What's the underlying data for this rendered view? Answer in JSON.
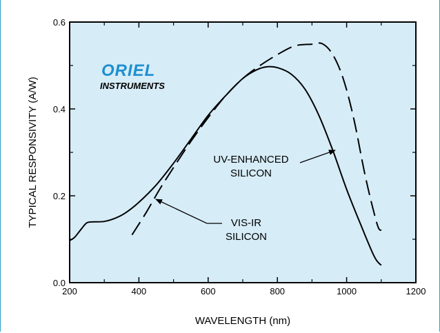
{
  "chart_data": {
    "type": "line",
    "xlabel": "WAVELENGTH (nm)",
    "ylabel": "TYPICAL RESPONSIVITY (A/W)",
    "xlim": [
      200,
      1200
    ],
    "ylim": [
      0.0,
      0.6
    ],
    "x_ticks": [
      "200",
      "400",
      "600",
      "800",
      "1000",
      "1200"
    ],
    "y_ticks": [
      "0.0",
      "0.2",
      "0.4",
      "0.6"
    ],
    "grid": false,
    "background": "#d6ecf7",
    "logo": {
      "brand": "ORIEL",
      "sub": "INSTRUMENTS",
      "color": "#1e8fd0"
    },
    "series": [
      {
        "label_lines": [
          "UV-ENHANCED",
          "SILICON"
        ],
        "style": "solid",
        "x": [
          200,
          215,
          235,
          250,
          270,
          300,
          330,
          360,
          400,
          450,
          500,
          550,
          600,
          650,
          700,
          740,
          770,
          800,
          840,
          880,
          920,
          960,
          1000,
          1040,
          1080,
          1100
        ],
        "y": [
          0.097,
          0.105,
          0.125,
          0.138,
          0.14,
          0.141,
          0.148,
          0.16,
          0.185,
          0.225,
          0.275,
          0.33,
          0.385,
          0.43,
          0.47,
          0.49,
          0.497,
          0.495,
          0.48,
          0.445,
          0.385,
          0.305,
          0.215,
          0.135,
          0.06,
          0.04
        ]
      },
      {
        "label_lines": [
          "VIS-IR",
          "SILICON"
        ],
        "style": "dashed",
        "x": [
          380,
          420,
          460,
          500,
          550,
          600,
          650,
          700,
          750,
          800,
          850,
          900,
          930,
          960,
          990,
          1020,
          1050,
          1070,
          1090,
          1100
        ],
        "y": [
          0.11,
          0.16,
          0.215,
          0.265,
          0.325,
          0.38,
          0.43,
          0.47,
          0.5,
          0.525,
          0.545,
          0.549,
          0.55,
          0.525,
          0.47,
          0.38,
          0.26,
          0.19,
          0.13,
          0.12
        ]
      }
    ]
  }
}
